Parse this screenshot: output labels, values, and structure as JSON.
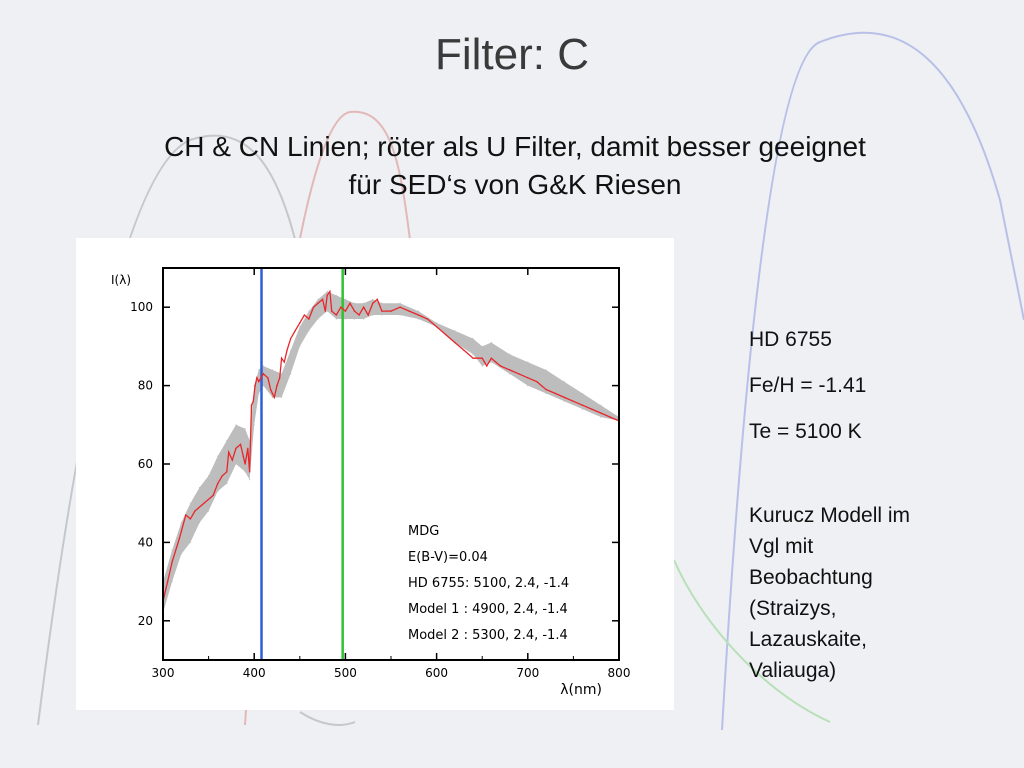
{
  "slide": {
    "title": "Filter: C",
    "subtitle": "CH & CN Linien; röter als U Filter,   damit besser geeignet\nfür SED‘s von G&K Riesen"
  },
  "info": {
    "star": "HD 6755",
    "metallicity": "Fe/H = -1.41",
    "temperature": "Te = 5100 K",
    "model_note": "Kurucz Modell im\nVgl mit\nBeobachtung\n(Straizys,\nLazauskaite,\nValiauga)"
  },
  "colors": {
    "background": "#eef0f3",
    "observation": "#e8262a",
    "model_band": "#bdbdbd",
    "filter_blue": "#2f5fd8",
    "filter_green": "#2ec42e",
    "decor_blue": "#b8c0e8",
    "decor_red": "#e2b8b8",
    "decor_gray": "#c4c8cc",
    "decor_green": "#b8e0b8"
  },
  "chart_data": {
    "type": "line",
    "xlabel": "λ(nm)",
    "ylabel": "I(λ)",
    "xlim": [
      300,
      800
    ],
    "ylim": [
      10,
      110
    ],
    "x_ticks": [
      300,
      400,
      500,
      600,
      700,
      800
    ],
    "y_ticks": [
      20,
      40,
      60,
      80,
      100
    ],
    "grid": false,
    "legend_lines": [
      "MDG",
      "E(B-V)=0.04",
      "HD 6755: 5100, 2.4, -1.4",
      "Model 1 : 4900, 2.4, -1.4",
      "Model 2 : 5300, 2.4, -1.4"
    ],
    "filter_markers": [
      {
        "x": 408,
        "color": "#2f5fd8"
      },
      {
        "x": 497,
        "color": "#2ec42e"
      }
    ],
    "series": [
      {
        "name": "HD 6755: 5100, 2.4, -1.4",
        "x": [
          300,
          305,
          310,
          318,
          325,
          330,
          335,
          345,
          355,
          360,
          365,
          370,
          372,
          376,
          380,
          385,
          388,
          390,
          393,
          395,
          397,
          399,
          401,
          403,
          405,
          410,
          415,
          418,
          420,
          422,
          425,
          428,
          430,
          433,
          436,
          440,
          445,
          450,
          455,
          460,
          465,
          470,
          475,
          478,
          480,
          483,
          485,
          490,
          495,
          500,
          505,
          510,
          515,
          520,
          525,
          530,
          535,
          540,
          550,
          560,
          570,
          580,
          590,
          600,
          610,
          620,
          630,
          640,
          650,
          655,
          660,
          670,
          680,
          690,
          700,
          710,
          720,
          730,
          740,
          750,
          760,
          770,
          780,
          790,
          800
        ],
        "y": [
          25,
          30,
          35,
          41,
          47,
          46,
          48,
          50,
          52,
          55,
          57,
          58,
          63,
          61,
          64,
          65,
          62,
          60,
          64,
          58,
          75,
          76,
          80,
          82,
          81,
          83,
          82,
          79,
          78,
          77,
          80,
          82,
          87,
          86,
          89,
          92,
          94,
          96,
          98,
          97,
          100,
          101,
          102,
          99,
          103,
          104,
          99,
          98,
          100,
          99,
          101,
          99,
          98,
          100,
          98,
          101,
          102,
          99,
          99,
          100,
          99,
          98,
          97,
          95,
          93,
          91,
          89,
          87,
          87,
          85,
          87,
          85,
          84,
          83,
          82,
          81,
          79,
          78,
          77,
          76,
          75,
          74,
          73,
          72,
          71
        ]
      },
      {
        "name": "Model 1 : 4900, 2.4, -1.4",
        "x": [
          300,
          310,
          320,
          330,
          340,
          350,
          360,
          370,
          380,
          390,
          395,
          400,
          405,
          410,
          420,
          430,
          440,
          450,
          460,
          470,
          480,
          490,
          500,
          510,
          520,
          530,
          540,
          560,
          580,
          600,
          620,
          640,
          650,
          660,
          680,
          700,
          720,
          740,
          760,
          780,
          800
        ],
        "y": [
          22,
          30,
          37,
          40,
          45,
          48,
          53,
          55,
          60,
          58,
          56,
          70,
          78,
          80,
          77,
          77,
          83,
          90,
          94,
          97,
          99,
          97,
          97,
          97,
          97,
          98,
          98,
          98,
          97,
          95,
          91,
          88,
          85,
          86,
          83,
          80,
          78,
          76,
          74,
          72,
          71
        ]
      },
      {
        "name": "Model 2 : 5300, 2.4, -1.4",
        "x": [
          300,
          310,
          320,
          330,
          340,
          350,
          360,
          370,
          380,
          390,
          395,
          400,
          405,
          410,
          420,
          430,
          440,
          450,
          460,
          470,
          480,
          490,
          500,
          510,
          520,
          530,
          540,
          560,
          580,
          600,
          620,
          640,
          650,
          660,
          680,
          700,
          720,
          740,
          760,
          780,
          800
        ],
        "y": [
          30,
          38,
          45,
          50,
          54,
          57,
          62,
          66,
          70,
          69,
          66,
          80,
          84,
          85,
          84,
          83,
          89,
          95,
          99,
          102,
          104,
          103,
          102,
          101,
          101,
          102,
          101,
          101,
          99,
          96,
          94,
          92,
          90,
          91,
          88,
          86,
          84,
          81,
          78,
          75,
          72
        ]
      }
    ]
  }
}
